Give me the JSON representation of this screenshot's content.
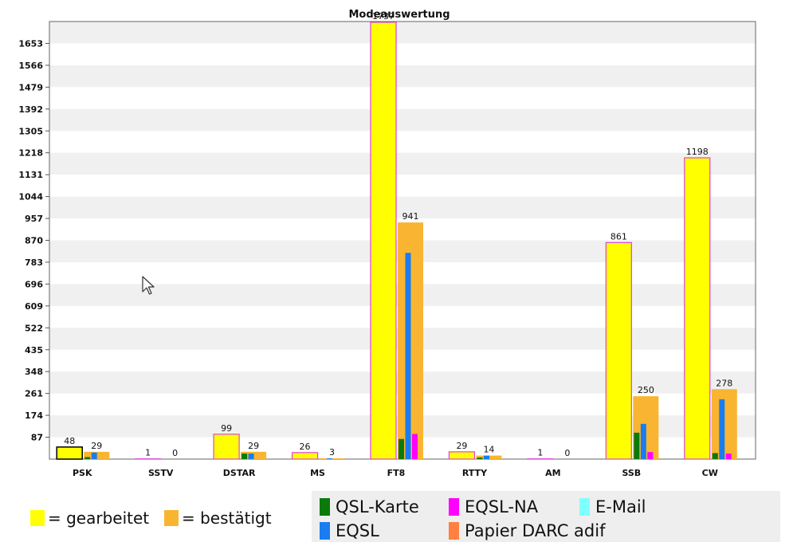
{
  "chart_data": {
    "type": "bar",
    "title": "Modeauswertung",
    "categories": [
      "PSK",
      "SSTV",
      "DSTAR",
      "MS",
      "FT8",
      "RTTY",
      "AM",
      "SSB",
      "CW"
    ],
    "ylim": [
      0,
      1740
    ],
    "yticks": [
      87,
      174,
      261,
      348,
      435,
      522,
      609,
      696,
      783,
      870,
      957,
      1044,
      1131,
      1218,
      1305,
      1392,
      1479,
      1566,
      1653
    ],
    "grid": "horizontal bands",
    "series": [
      {
        "name": "= gearbeitet",
        "color": "#ffff00",
        "values": [
          48,
          1,
          99,
          26,
          1737,
          29,
          1,
          861,
          1198
        ]
      },
      {
        "name": "= bestätigt",
        "color": "#f9b531",
        "values": [
          29,
          0,
          29,
          3,
          941,
          14,
          0,
          250,
          278
        ]
      },
      {
        "name": "QSL-Karte",
        "color": "#0a7a0a",
        "values": [
          8,
          0,
          22,
          0,
          80,
          6,
          0,
          105,
          24
        ]
      },
      {
        "name": "EQSL",
        "color": "#1a7cf0",
        "values": [
          26,
          0,
          22,
          3,
          820,
          14,
          0,
          140,
          238
        ]
      },
      {
        "name": "EQSL-NA",
        "color": "#ff00ff",
        "values": [
          0,
          0,
          0,
          0,
          100,
          0,
          0,
          28,
          22
        ]
      },
      {
        "name": "E-Mail",
        "color": "#80ffff",
        "values": [
          0,
          0,
          0,
          0,
          0,
          0,
          0,
          0,
          0
        ]
      },
      {
        "name": "Papier DARC adif",
        "color": "#ff8040",
        "values": [
          0,
          0,
          0,
          0,
          0,
          0,
          0,
          0,
          0
        ]
      }
    ]
  },
  "legend_left": [
    {
      "label": "= gearbeitet",
      "color": "#ffff00"
    },
    {
      "label": "= bestätigt",
      "color": "#f9b531"
    }
  ],
  "legend_right": [
    {
      "label": "QSL-Karte",
      "color": "#0a7a0a"
    },
    {
      "label": "EQSL-NA",
      "color": "#ff00ff"
    },
    {
      "label": "E-Mail",
      "color": "#80ffff"
    },
    {
      "label": "EQSL",
      "color": "#1a7cf0"
    },
    {
      "label": "Papier DARC adif",
      "color": "#ff8040"
    }
  ]
}
